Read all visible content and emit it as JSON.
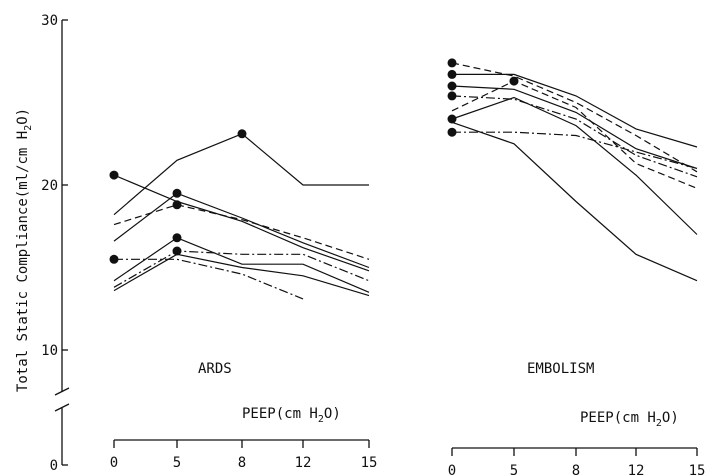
{
  "chart_data": [
    {
      "type": "line",
      "panel_label": "ARDS",
      "ylabel": "Total Static Compliance(ml/cm H",
      "ylabel_sub": "2",
      "ylabel_end": "O)",
      "xlabel": "PEEP(cm H",
      "xlabel_sub": "2",
      "xlabel_end": "O)",
      "x": [
        0,
        5,
        8,
        12,
        15
      ],
      "y_ticks": [
        "0",
        "10",
        "20",
        "30"
      ],
      "y_axis_break": true,
      "series": [
        {
          "style": "solid",
          "points": [
            [
              0,
              18.2
            ],
            [
              5,
              21.5
            ],
            [
              8,
              23.1
            ],
            [
              12,
              20.0
            ],
            [
              15,
              20.0
            ]
          ],
          "marker": [
            8,
            23.1
          ]
        },
        {
          "style": "solid",
          "points": [
            [
              0,
              20.6
            ],
            [
              5,
              19.0
            ],
            [
              8,
              17.8
            ],
            [
              12,
              16.2
            ],
            [
              15,
              14.8
            ]
          ],
          "marker": [
            0,
            20.6
          ]
        },
        {
          "style": "solid",
          "points": [
            [
              0,
              16.6
            ],
            [
              5,
              19.5
            ],
            [
              8,
              18.0
            ],
            [
              12,
              16.5
            ],
            [
              15,
              15.0
            ]
          ],
          "marker": [
            5,
            19.5
          ]
        },
        {
          "style": "dashed",
          "points": [
            [
              0,
              17.6
            ],
            [
              5,
              18.8
            ],
            [
              8,
              17.9
            ],
            [
              12,
              16.8
            ],
            [
              15,
              15.5
            ]
          ],
          "marker": [
            5,
            18.8
          ]
        },
        {
          "style": "dashdot",
          "points": [
            [
              0,
              15.5
            ],
            [
              5,
              15.5
            ],
            [
              8,
              14.6
            ],
            [
              12,
              13.1
            ]
          ],
          "marker": [
            0,
            15.5
          ]
        },
        {
          "style": "solid",
          "points": [
            [
              0,
              14.2
            ],
            [
              5,
              16.8
            ],
            [
              8,
              15.2
            ],
            [
              12,
              15.2
            ],
            [
              15,
              13.5
            ]
          ],
          "marker": [
            5,
            16.8
          ]
        },
        {
          "style": "dashdot",
          "points": [
            [
              0,
              13.8
            ],
            [
              5,
              16.0
            ],
            [
              8,
              15.8
            ],
            [
              12,
              15.8
            ],
            [
              15,
              14.2
            ]
          ],
          "marker": [
            5,
            16.0
          ]
        },
        {
          "style": "solid",
          "points": [
            [
              0,
              13.6
            ],
            [
              5,
              15.8
            ],
            [
              8,
              15.0
            ],
            [
              12,
              14.5
            ],
            [
              15,
              13.3
            ]
          ]
        }
      ]
    },
    {
      "type": "line",
      "panel_label": "EMBOLISM",
      "xlabel": "PEEP(cm H",
      "xlabel_sub": "2",
      "xlabel_end": "O)",
      "x": [
        0,
        5,
        8,
        12,
        15
      ],
      "series": [
        {
          "style": "dashed",
          "points": [
            [
              0,
              27.4
            ],
            [
              5,
              26.6
            ],
            [
              8,
              25.0
            ],
            [
              12,
              23.0
            ],
            [
              15,
              20.8
            ]
          ],
          "marker": [
            0,
            27.4
          ]
        },
        {
          "style": "solid",
          "points": [
            [
              0,
              26.7
            ],
            [
              5,
              26.7
            ],
            [
              8,
              25.4
            ],
            [
              12,
              23.4
            ],
            [
              15,
              22.3
            ]
          ],
          "marker": [
            0,
            26.7
          ]
        },
        {
          "style": "solid",
          "points": [
            [
              0,
              26.0
            ],
            [
              5,
              25.8
            ],
            [
              8,
              24.4
            ],
            [
              12,
              22.2
            ],
            [
              15,
              21.0
            ]
          ],
          "marker": [
            0,
            26.0
          ]
        },
        {
          "style": "dashdot",
          "points": [
            [
              0,
              25.4
            ],
            [
              5,
              25.2
            ],
            [
              8,
              24.0
            ],
            [
              12,
              21.8
            ],
            [
              15,
              20.5
            ]
          ],
          "marker": [
            0,
            25.4
          ]
        },
        {
          "style": "dashed",
          "points": [
            [
              0,
              24.5
            ],
            [
              5,
              26.3
            ],
            [
              8,
              24.7
            ],
            [
              12,
              21.3
            ],
            [
              15,
              19.8
            ]
          ],
          "marker": [
            5,
            26.3
          ]
        },
        {
          "style": "solid",
          "points": [
            [
              0,
              24.0
            ],
            [
              5,
              25.3
            ],
            [
              8,
              23.6
            ],
            [
              12,
              20.6
            ],
            [
              15,
              17.0
            ]
          ],
          "marker": [
            0,
            24.0
          ]
        },
        {
          "style": "dashdot",
          "points": [
            [
              0,
              23.2
            ],
            [
              5,
              23.2
            ],
            [
              8,
              23.0
            ],
            [
              12,
              22.0
            ],
            [
              15,
              21.0
            ]
          ],
          "marker": [
            0,
            23.2
          ]
        },
        {
          "style": "solid",
          "points": [
            [
              0,
              23.8
            ],
            [
              5,
              22.5
            ],
            [
              8,
              19.0
            ],
            [
              12,
              15.8
            ],
            [
              15,
              14.2
            ]
          ]
        }
      ]
    }
  ]
}
